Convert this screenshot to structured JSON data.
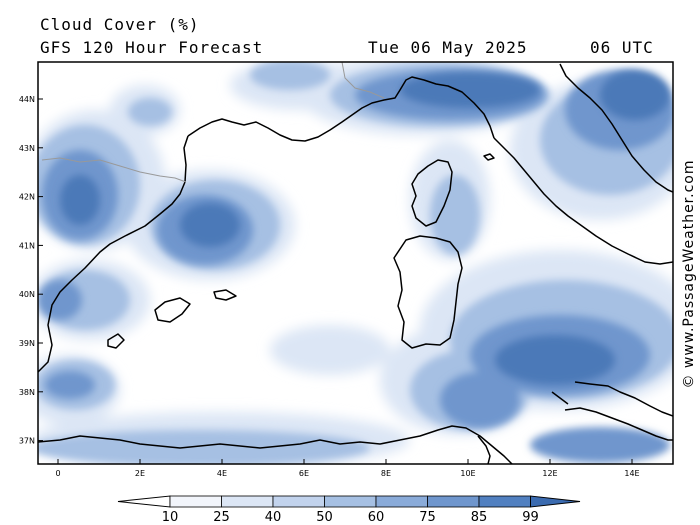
{
  "header": {
    "title": "Cloud Cover (%)",
    "model": "GFS 120 Hour Forecast",
    "date": "Tue 06 May 2025",
    "time": "06 UTC"
  },
  "credit": "© www.PassageWeather.com",
  "axes": {
    "lat_labels": [
      "44N",
      "43N",
      "42N",
      "41N",
      "40N",
      "39N",
      "38N",
      "37N"
    ],
    "lon_labels": [
      "0",
      "2E",
      "4E",
      "6E",
      "8E",
      "10E",
      "12E",
      "14E"
    ]
  },
  "colorbar": {
    "labels": [
      "10",
      "25",
      "40",
      "50",
      "60",
      "75",
      "85",
      "99"
    ],
    "colors": [
      "#ffffff",
      "#f2f5fb",
      "#dce6f5",
      "#c2d3ed",
      "#a6c0e3",
      "#8aabd9",
      "#6f96cd",
      "#5180c0",
      "#3b6bb0"
    ]
  },
  "map_colors": {
    "light": "#dce6f5",
    "mid": "#a6c0e3",
    "dark": "#6f96cd",
    "darkest": "#4c79b8",
    "coast": "#000000"
  }
}
